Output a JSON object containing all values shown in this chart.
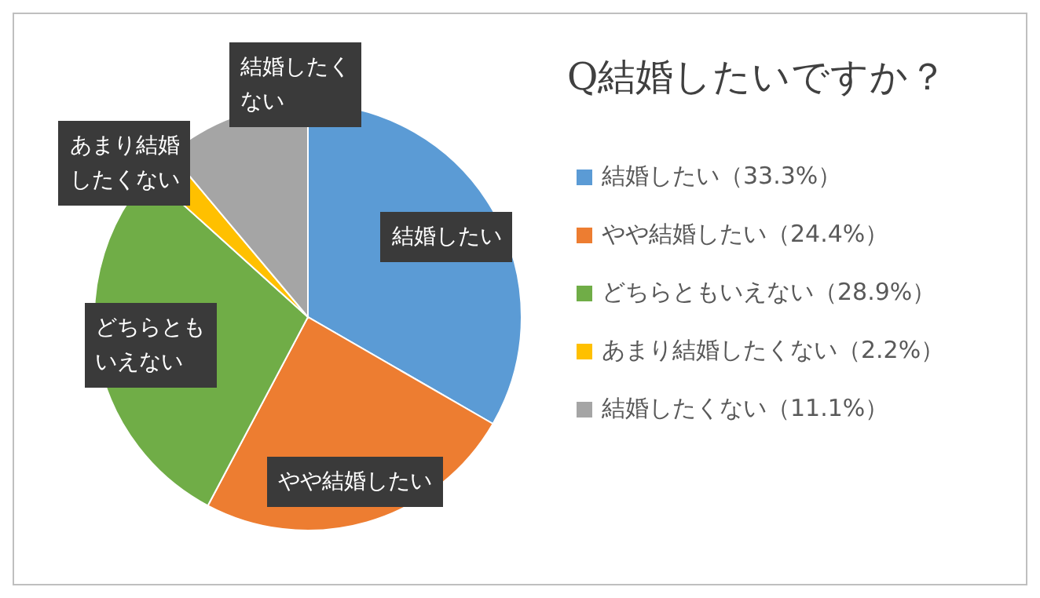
{
  "chart_data": {
    "type": "pie",
    "title": "Q結婚したいですか？",
    "categories": [
      "結婚したい",
      "やや結婚したい",
      "どちらともいえない",
      "あまり結婚したくない",
      "結婚したくない"
    ],
    "values": [
      33.3,
      24.4,
      28.9,
      2.2,
      11.1
    ],
    "value_labels": [
      "（33.3%）",
      "（24.4%）",
      "（28.9%）",
      "（2.2%）",
      "（11.1%）"
    ],
    "colors": [
      "#5b9bd5",
      "#ed7d31",
      "#70ad47",
      "#ffc000",
      "#a5a5a5"
    ],
    "legend": "right"
  }
}
